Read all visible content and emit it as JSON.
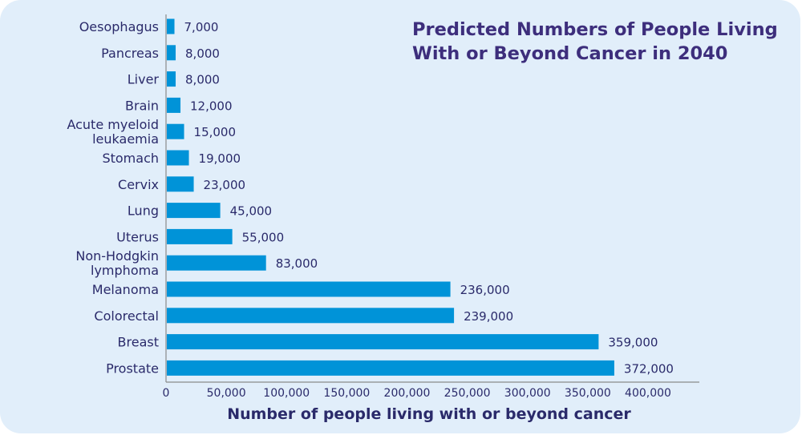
{
  "chart_data": {
    "type": "bar",
    "orientation": "horizontal",
    "title": "Predicted Numbers of People Living With or Beyond Cancer in 2040",
    "title_lines": [
      "Predicted Numbers of People Living",
      "With or Beyond Cancer in 2040"
    ],
    "xlabel": "Number of people living with or beyond cancer",
    "ylabel": "",
    "xlim": [
      0,
      400000
    ],
    "xticks": [
      0,
      50000,
      100000,
      150000,
      200000,
      250000,
      300000,
      350000,
      400000
    ],
    "xtick_labels": [
      "0",
      "50,000",
      "100,000",
      "150,000",
      "200,000",
      "250,000",
      "300,000",
      "350,000",
      "400,000"
    ],
    "grid": false,
    "legend": "none",
    "bar_color": "#0093d8",
    "categories": [
      [
        "Oesophagus"
      ],
      [
        "Pancreas"
      ],
      [
        "Liver"
      ],
      [
        "Brain"
      ],
      [
        "Acute myeloid",
        "leukaemia"
      ],
      [
        "Stomach"
      ],
      [
        "Cervix"
      ],
      [
        "Lung"
      ],
      [
        "Uterus"
      ],
      [
        "Non-Hodgkin",
        "lymphoma"
      ],
      [
        "Melanoma"
      ],
      [
        "Colorectal"
      ],
      [
        "Breast"
      ],
      [
        "Prostate"
      ]
    ],
    "values": [
      7000,
      8000,
      8000,
      12000,
      15000,
      19000,
      23000,
      45000,
      55000,
      83000,
      236000,
      239000,
      359000,
      372000
    ],
    "value_labels": [
      "7,000",
      "8,000",
      "8,000",
      "12,000",
      "15,000",
      "19,000",
      "23,000",
      "45,000",
      "55,000",
      "83,000",
      "236,000",
      "239,000",
      "359,000",
      "372,000"
    ]
  }
}
